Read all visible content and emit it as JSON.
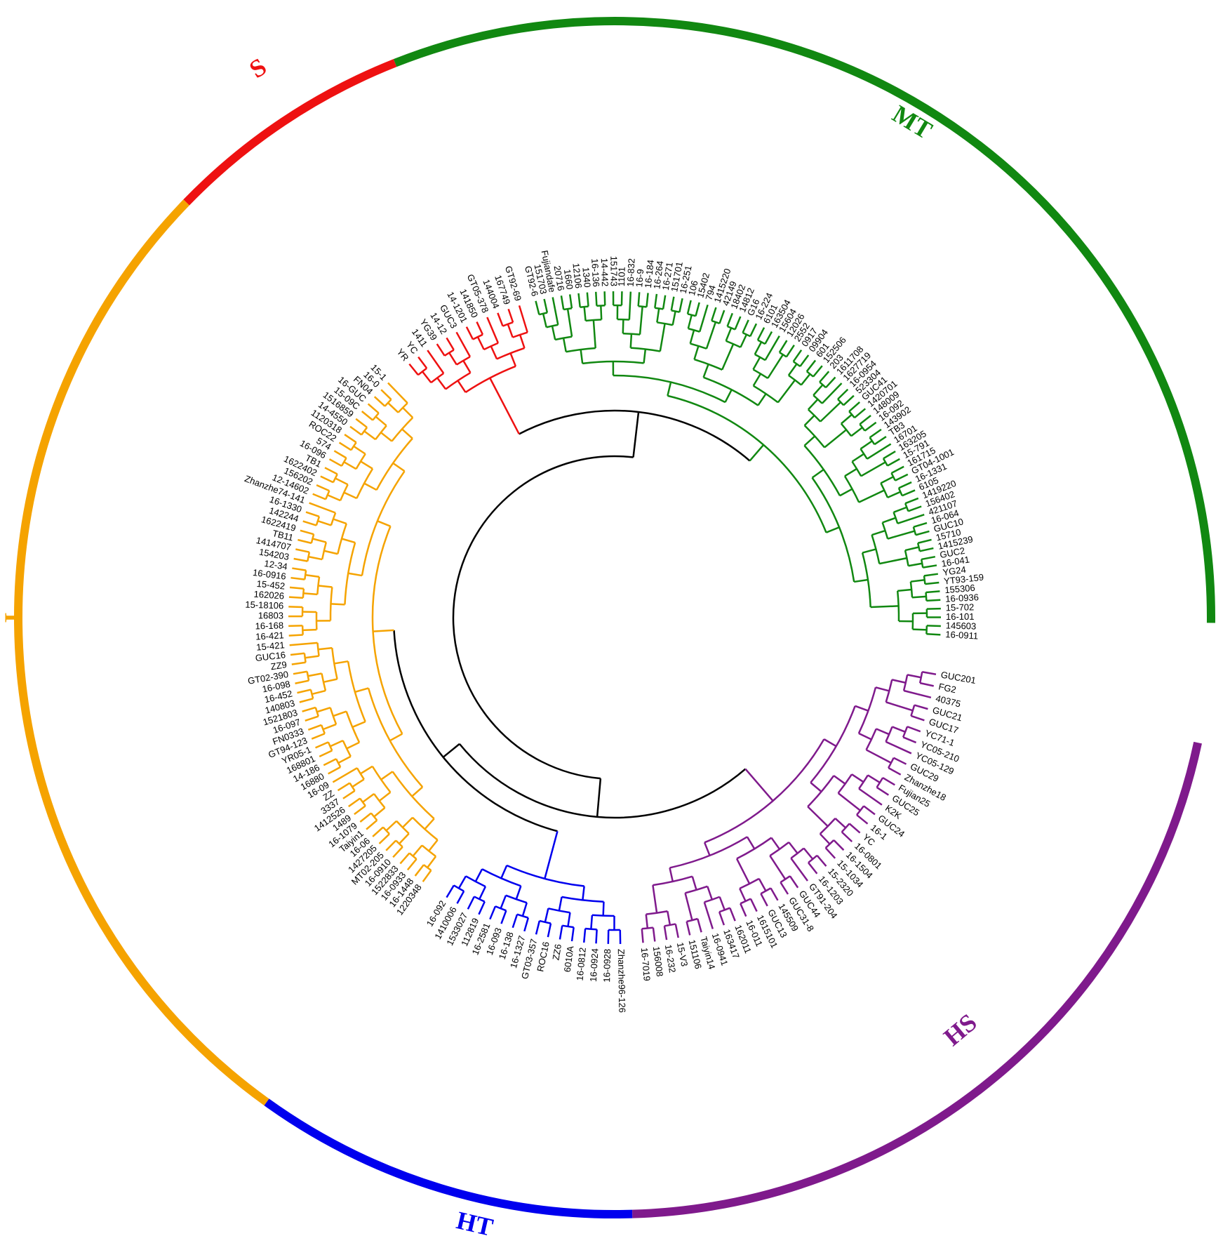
{
  "groups": [
    {
      "name": "S",
      "color": "#ee1111",
      "leaves": [
        "YR",
        "YC",
        "1411",
        "YG39",
        "14-12",
        "GUC3",
        "14-1201",
        "141850",
        "GT05-378",
        "144004",
        "167749",
        "GT92-69"
      ]
    },
    {
      "name": "MT",
      "color": "#118811",
      "leaves": [
        "GT92-6",
        "151703",
        "Fujiandafe",
        "20716",
        "1660",
        "12106",
        "1340",
        "16-136",
        "14-442",
        "151743",
        "1101",
        "16-832",
        "16-9",
        "16-184",
        "16-264",
        "16-271",
        "151701",
        "16-251",
        "106",
        "15402",
        "794",
        "1415220",
        "42149",
        "18402",
        "14812",
        "G16",
        "16-224",
        "6101",
        "163504",
        "15604",
        "12026",
        "2552",
        "0917",
        "09904",
        "601",
        "152506",
        "203",
        "1611708",
        "1627719",
        "16-0954",
        "523304",
        "GUC41",
        "1420701",
        "148009",
        "16-092",
        "143902",
        "TB3",
        "16701",
        "163205",
        "15-791",
        "161715",
        "GT04-1001",
        "16-1331",
        "6105",
        "1419220",
        "156402",
        "421107",
        "16-064",
        "GUC10",
        "15710",
        "1415239",
        "GUC2",
        "16-041",
        "YG24",
        "YT93-159",
        "155306",
        "16-0936",
        "15-702",
        "16-101",
        "145603",
        "16-0911"
      ]
    },
    {
      "name": "T",
      "color": "#f5a300",
      "leaves": [
        "1220348",
        "16-1448",
        "16-0933",
        "1522833",
        "16-0910",
        "MT02-205",
        "1427205",
        "16-06",
        "Taiyin1",
        "16-1079",
        "1489",
        "1412526",
        "3337",
        "ZZ",
        "16-09",
        "16880",
        "14-186",
        "168801",
        "YR05-1",
        "GT94-123",
        "FN0333",
        "16-097",
        "1521803",
        "140803",
        "16-452",
        "16-098",
        "GT02-390",
        "ZZ9",
        "GUC16",
        "15-421",
        "16-421",
        "16-168",
        "16803",
        "15-18106",
        "162026",
        "15-452",
        "16-0916",
        "12-34",
        "154203",
        "1414707",
        "TB11",
        "1622419",
        "142244",
        "16-1330",
        "Zhanzhe74-141",
        "12-14602",
        "156202",
        "1622402",
        "TB1",
        "16-096",
        "574",
        "ROC22",
        "1120318",
        "14-4550",
        "1516859",
        "15-09C",
        "16-GUC",
        "FN04",
        "16-0",
        "15-1"
      ]
    },
    {
      "name": "HT",
      "color": "#0000ee",
      "leaves": [
        "Zhanzhe96-126",
        "16-0928",
        "16-0924",
        "16-0812",
        "6010A",
        "ZZ6",
        "ROC16",
        "GT03-357",
        "16-1327",
        "16-138",
        "16-093",
        "16-2581",
        "112819",
        "1533027",
        "1410006",
        "16-092"
      ]
    },
    {
      "name": "HS",
      "color": "#7f1a8c",
      "leaves": [
        "GUC201",
        "FG2",
        "40375",
        "GUC21",
        "GUC17",
        "YC71-1",
        "YC05-210",
        "YC05-129",
        "GUC29",
        "Zhanzhe18",
        "Fujian25",
        "GUC25",
        "K2K",
        "GUC24",
        "16-1",
        "YC",
        "16-0801",
        "16-1504",
        "15-1034",
        "15-2320",
        "16-1203",
        "GT91-204",
        "GUC44",
        "GUC31-8",
        "145509",
        "GUC13",
        "1615101",
        "16-011",
        "162011",
        "163417",
        "16-0941",
        "Taiyin14",
        "151106",
        "15-V3",
        "16-232",
        "156008",
        "16-7019"
      ]
    }
  ]
}
